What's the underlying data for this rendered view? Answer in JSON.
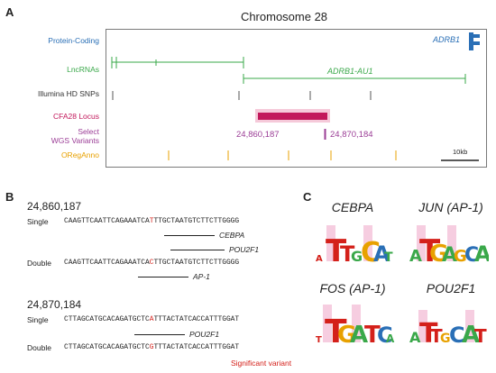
{
  "panel_a": {
    "letter": "A",
    "title": "Chromosome 28",
    "tracks": {
      "protein_coding": "Protein-Coding",
      "lncrnas": "LncRNAs",
      "snps": "Illumina HD SNPs",
      "locus": "CFA28 Locus",
      "select": "Select",
      "wgs": "WGS Variants",
      "oreganno": "ORegAnno"
    },
    "genes": {
      "adrb1": "ADRB1",
      "adrb1_au1": "ADRB1-AU1"
    },
    "variant_positions": [
      "24,860,187",
      "24,870,184"
    ],
    "scale_bar": "10kb",
    "colors": {
      "protein_coding": "#2a6fb6",
      "lncrna": "#3aa84a",
      "locus": "#c2185b",
      "wgs": "#9b3d96",
      "oreganno": "#e8a100",
      "significant": "#d4201a"
    }
  },
  "panel_b": {
    "letter": "B",
    "variant1": {
      "position": "24,860,187",
      "single_label": "Single",
      "double_label": "Double",
      "single_seq_pre": "CAAGTTCAATTCAGAAATCA",
      "single_seq_var": "T",
      "single_seq_post": "TTGCTAATGTCTTCTTGGGG",
      "double_seq_pre": "CAAGTTCAATTCAGAAATCA",
      "double_seq_var": "C",
      "double_seq_post": "TTGCTAATGTCTTCTTGGGG",
      "tf_single": [
        "CEBPA",
        "POU2F1"
      ],
      "tf_double": [
        "AP-1"
      ]
    },
    "variant2": {
      "position": "24,870,184",
      "single_label": "Single",
      "double_label": "Double",
      "single_seq_pre": "CTTAGCATGCACAGATGCTC",
      "single_seq_var": "A",
      "single_seq_post": "TTTACTATCACCATTTGGAT",
      "double_seq_pre": "CTTAGCATGCACAGATGCTC",
      "double_seq_var": "G",
      "double_seq_post": "TTTACTATCACCATTTGGAT",
      "tf_single": [
        "POU2F1"
      ]
    },
    "legend": "Significant variant"
  },
  "panel_c": {
    "letter": "C",
    "logos": [
      "CEBPA",
      "JUN (AP-1)",
      "FOS (AP-1)",
      "POU2F1"
    ]
  }
}
